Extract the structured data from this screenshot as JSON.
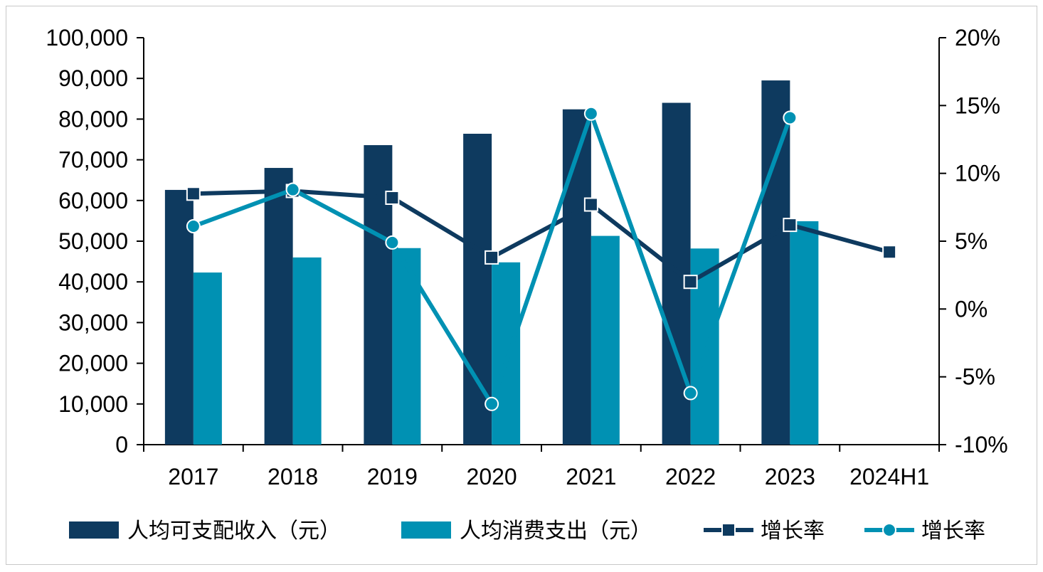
{
  "chart_data": {
    "type": "bar",
    "title": "",
    "xlabel": "",
    "ylabel": "",
    "categories": [
      "2017",
      "2018",
      "2019",
      "2020",
      "2021",
      "2022",
      "2023",
      "2024H1"
    ],
    "ylim": [
      0,
      100000
    ],
    "y_ticks": [
      "0",
      "10,000",
      "20,000",
      "30,000",
      "40,000",
      "50,000",
      "60,000",
      "70,000",
      "80,000",
      "90,000",
      "100,000"
    ],
    "y2lim": [
      -10,
      20
    ],
    "y2_ticks": [
      "-10%",
      "-5%",
      "0%",
      "5%",
      "10%",
      "15%",
      "20%"
    ],
    "grid": false,
    "legend_position": "bottom",
    "series": [
      {
        "name": "人均可支配收入（元）",
        "type": "bar",
        "axis": "left",
        "color": "#0e3a5f",
        "values": [
          62600,
          68000,
          73600,
          76400,
          82400,
          84000,
          89500,
          null
        ]
      },
      {
        "name": "人均消费支出（元）",
        "type": "bar",
        "axis": "left",
        "color": "#0091b3",
        "values": [
          42300,
          46000,
          48300,
          44800,
          51300,
          48200,
          54900,
          null
        ]
      },
      {
        "name": "增长率",
        "type": "line",
        "marker": "square",
        "axis": "right",
        "color": "#0e3a5f",
        "values": [
          8.5,
          8.7,
          8.2,
          3.8,
          7.7,
          2.0,
          6.2,
          4.2
        ]
      },
      {
        "name": "增长率",
        "type": "line",
        "marker": "circle",
        "axis": "right",
        "color": "#0091b3",
        "values": [
          6.1,
          8.8,
          4.9,
          -7.0,
          14.4,
          -6.2,
          14.1,
          null
        ]
      }
    ]
  }
}
